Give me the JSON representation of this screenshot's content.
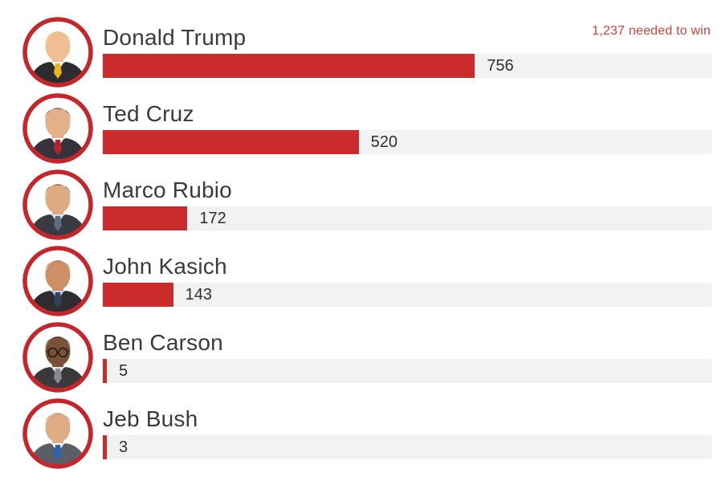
{
  "chart_data": {
    "type": "bar",
    "orientation": "horizontal",
    "title": "",
    "annotation": "1,237 needed to win",
    "max_value": 1237,
    "categories": [
      "Donald Trump",
      "Ted Cruz",
      "Marco Rubio",
      "John Kasich",
      "Ben Carson",
      "Jeb Bush"
    ],
    "values": [
      756,
      520,
      172,
      143,
      5,
      3
    ],
    "value_labels": [
      "756",
      "520",
      "172",
      "143",
      "5",
      "3"
    ],
    "legend": "none",
    "grid": false,
    "bar_color": "#CB2B2B",
    "track_color": "#F2F2F2",
    "annotation_color": "#D6413C"
  },
  "text_colors": {
    "name": "#3B3B3B",
    "value": "#2E2E2E"
  },
  "candidates": [
    {
      "name": "Donald Trump",
      "value": 756,
      "value_label": "756",
      "avatar": {
        "ring": "#C5262C",
        "skin": "#EFBE92",
        "hair": "#E9C87E",
        "suit": "#2B2B30",
        "shirt": "#FFFFFF",
        "tie": "#E8B51F",
        "glasses": false
      }
    },
    {
      "name": "Ted Cruz",
      "value": 520,
      "value_label": "520",
      "avatar": {
        "ring": "#C5262C",
        "skin": "#E3B08A",
        "hair": "#2E2620",
        "suit": "#35323B",
        "shirt": "#FFFFFF",
        "tie": "#B3242F",
        "glasses": false
      }
    },
    {
      "name": "Marco Rubio",
      "value": 172,
      "value_label": "172",
      "avatar": {
        "ring": "#C5262C",
        "skin": "#DFAA82",
        "hair": "#43302A",
        "suit": "#3A3A42",
        "shirt": "#D8E2EC",
        "tie": "#5E6C80",
        "glasses": false
      }
    },
    {
      "name": "John Kasich",
      "value": 143,
      "value_label": "143",
      "avatar": {
        "ring": "#C5262C",
        "skin": "#CE8F66",
        "hair": "#8F7F6E",
        "suit": "#2E2C31",
        "shirt": "#BCD1E8",
        "tie": "#35425E",
        "glasses": false
      }
    },
    {
      "name": "Ben Carson",
      "value": 5,
      "value_label": "5",
      "avatar": {
        "ring": "#C5262C",
        "skin": "#7A5138",
        "hair": "#211C19",
        "suit": "#3B3939",
        "shirt": "#E9E9EC",
        "tie": "#8A8A94",
        "glasses": true
      }
    },
    {
      "name": "Jeb Bush",
      "value": 3,
      "value_label": "3",
      "avatar": {
        "ring": "#C5262C",
        "skin": "#DFAC85",
        "hair": "#9A938A",
        "suit": "#5A5E66",
        "shirt": "#FFFFFF",
        "tie": "#2E62B0",
        "glasses": false
      }
    }
  ]
}
